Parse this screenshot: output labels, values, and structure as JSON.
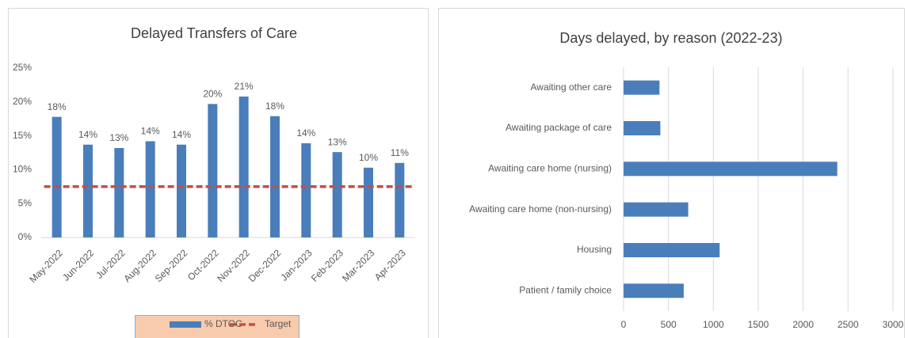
{
  "chart_data": [
    {
      "type": "bar",
      "title": "Delayed Transfers of Care",
      "categories": [
        "May-2022",
        "Jun-2022",
        "Jul-2022",
        "Aug-2022",
        "Sep-2022",
        "Oct-2022",
        "Nov-2022",
        "Dec-2022",
        "Jan-2023",
        "Feb-2023",
        "Mar-2023",
        "Apr-2023"
      ],
      "series": [
        {
          "name": "% DTOC",
          "type": "bar",
          "color": "#4a7ebb",
          "values": [
            17.8,
            13.7,
            13.2,
            14.2,
            13.7,
            19.7,
            20.8,
            17.9,
            13.9,
            12.6,
            10.3,
            11.0
          ],
          "value_labels": [
            "18%",
            "14%",
            "13%",
            "14%",
            "14%",
            "20%",
            "21%",
            "18%",
            "14%",
            "13%",
            "10%",
            "11%"
          ]
        },
        {
          "name": "Target",
          "type": "line",
          "color": "#c0504d",
          "values": [
            7.5,
            7.5,
            7.5,
            7.5,
            7.5,
            7.5,
            7.5,
            7.5,
            7.5,
            7.5,
            7.5,
            7.5
          ]
        }
      ],
      "ylim": [
        0,
        25
      ],
      "yticks": [
        {
          "value": 0,
          "label": "0%"
        },
        {
          "value": 5,
          "label": "5%"
        },
        {
          "value": 10,
          "label": "10%"
        },
        {
          "value": 15,
          "label": "15%"
        },
        {
          "value": 20,
          "label": "20%"
        },
        {
          "value": 25,
          "label": "25%"
        }
      ],
      "grid": false,
      "legend": "bottom"
    },
    {
      "type": "hbar",
      "title": "Days delayed, by reason (2022-23)",
      "categories": [
        "Awaiting other care",
        "Awaiting package of care",
        "Awaiting care home (nursing)",
        "Awaiting care home (non-nursing)",
        "Housing",
        "Patient / family choice"
      ],
      "values": [
        400,
        410,
        2380,
        720,
        1070,
        670
      ],
      "color": "#4a7ebb",
      "xlim": [
        0,
        3000
      ],
      "xticks": [
        0,
        500,
        1000,
        1500,
        2000,
        2500,
        3000
      ],
      "grid": true
    }
  ]
}
